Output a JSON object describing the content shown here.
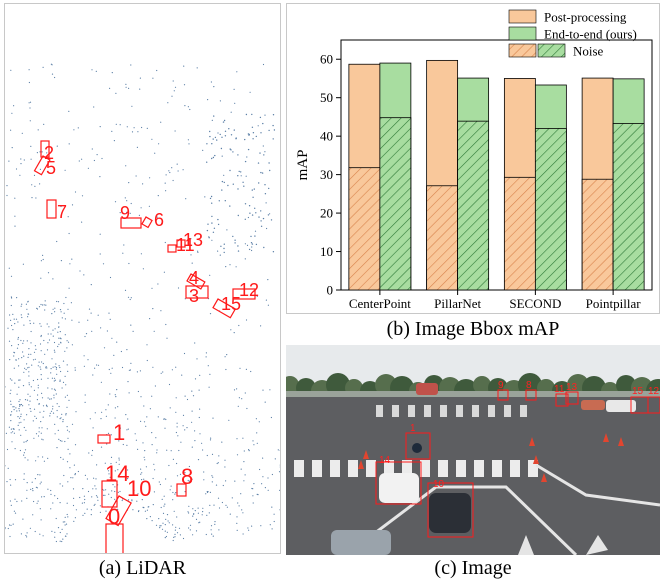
{
  "captions": {
    "lidar": "(a) LiDAR",
    "chart": "(b) Image Bbox mAP",
    "image": "(c) Image"
  },
  "lidar_labels": [
    "2",
    "5",
    "7",
    "9",
    "6",
    "11",
    "13",
    "4",
    "3",
    "12",
    "15",
    "1",
    "14",
    "10",
    "8",
    "0"
  ],
  "image_labels": [
    "1",
    "10",
    "11",
    "13",
    "15",
    "12",
    "9",
    "8",
    "14"
  ],
  "colors": {
    "post_processing": "#f9c89b",
    "end_to_end": "#a8dda0",
    "box_red": "#ff1a1a",
    "hatch_orange": "#d8834c",
    "hatch_green": "#2f7a38"
  },
  "chart_data": {
    "type": "bar",
    "title": "",
    "xlabel": "",
    "ylabel": "mAP",
    "ylim": [
      0,
      65
    ],
    "yticks": [
      0,
      10,
      20,
      30,
      40,
      50,
      60
    ],
    "grid": false,
    "legend_position": "top-right",
    "categories": [
      "CenterPoint",
      "PillarNet",
      "SECOND",
      "Pointpillar"
    ],
    "series": [
      {
        "name": "Post-processing",
        "values": [
          58.7,
          59.7,
          55.0,
          55.1
        ],
        "noise": [
          31.8,
          27.1,
          29.3,
          28.8
        ]
      },
      {
        "name": "End-to-end (ours)",
        "values": [
          59.0,
          55.1,
          53.3,
          54.9
        ],
        "noise": [
          44.8,
          43.9,
          42.0,
          43.3
        ]
      }
    ],
    "noise_legend": "Noise"
  }
}
